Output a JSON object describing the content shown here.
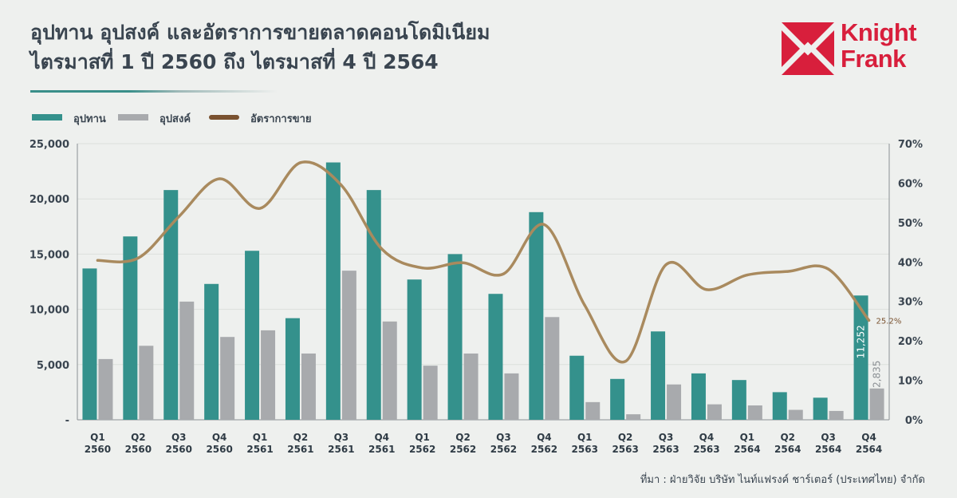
{
  "title": {
    "line1": "อุปทาน อุปสงค์ และอัตราการขายตลาดคอนโดมิเนียม",
    "line2": "ไตรมาสที่ 1 ปี 2560 ถึง ไตรมาสที่ 4 ปี 2564"
  },
  "logo": {
    "line1": "Knight",
    "line2": "Frank",
    "color": "#d81f3c"
  },
  "source": "ที่มา : ฝ่ายวิจัย บริษัท ไนท์แฟรงค์ ชาร์เตอร์ (ประเทศไทย) จำกัด",
  "colors": {
    "supply": "#34918c",
    "demand": "#a8aaad",
    "rate": "#a98a5e",
    "rate_legend": "#7a5230"
  },
  "chart_data": {
    "type": "bar",
    "categories": [
      [
        "Q1",
        "2560"
      ],
      [
        "Q2",
        "2560"
      ],
      [
        "Q3",
        "2560"
      ],
      [
        "Q4",
        "2560"
      ],
      [
        "Q1",
        "2561"
      ],
      [
        "Q2",
        "2561"
      ],
      [
        "Q3",
        "2561"
      ],
      [
        "Q4",
        "2561"
      ],
      [
        "Q1",
        "2562"
      ],
      [
        "Q2",
        "2562"
      ],
      [
        "Q3",
        "2562"
      ],
      [
        "Q4",
        "2562"
      ],
      [
        "Q1",
        "2563"
      ],
      [
        "Q2",
        "2563"
      ],
      [
        "Q3",
        "2563"
      ],
      [
        "Q4",
        "2563"
      ],
      [
        "Q1",
        "2564"
      ],
      [
        "Q2",
        "2564"
      ],
      [
        "Q3",
        "2564"
      ],
      [
        "Q4",
        "2564"
      ]
    ],
    "series": [
      {
        "name": "อุปทาน",
        "type": "bar",
        "axis": "left",
        "values": [
          13700,
          16600,
          20800,
          12300,
          15300,
          9200,
          23300,
          20800,
          12700,
          15000,
          11400,
          18800,
          5800,
          3700,
          8000,
          4200,
          3600,
          2500,
          2000,
          11252
        ]
      },
      {
        "name": "อุปสงค์",
        "type": "bar",
        "axis": "left",
        "values": [
          5500,
          6700,
          10700,
          7500,
          8100,
          6000,
          13500,
          8900,
          4900,
          6000,
          4200,
          9300,
          1600,
          500,
          3200,
          1400,
          1300,
          900,
          800,
          2835
        ]
      },
      {
        "name": "อัตราการขาย",
        "type": "line",
        "axis": "right",
        "values": [
          40.4,
          41.0,
          51.5,
          61.1,
          53.6,
          65.2,
          59.5,
          43.3,
          38.5,
          39.8,
          37.0,
          49.5,
          29.0,
          14.8,
          39.3,
          33.0,
          36.7,
          37.6,
          38.2,
          25.2
        ]
      }
    ],
    "y_left": {
      "min": 0,
      "max": 25000,
      "ticks": [
        "-",
        "5,000",
        "10,000",
        "15,000",
        "20,000",
        "25,000"
      ]
    },
    "y_right": {
      "min": 0,
      "max": 70,
      "ticks": [
        "0%",
        "10%",
        "20%",
        "30%",
        "40%",
        "50%",
        "60%",
        "70%"
      ]
    },
    "annotations": {
      "supply_last": "11,252",
      "demand_last": "2,835",
      "rate_last": "25.2%"
    },
    "legend": "top-left",
    "grid": true
  }
}
